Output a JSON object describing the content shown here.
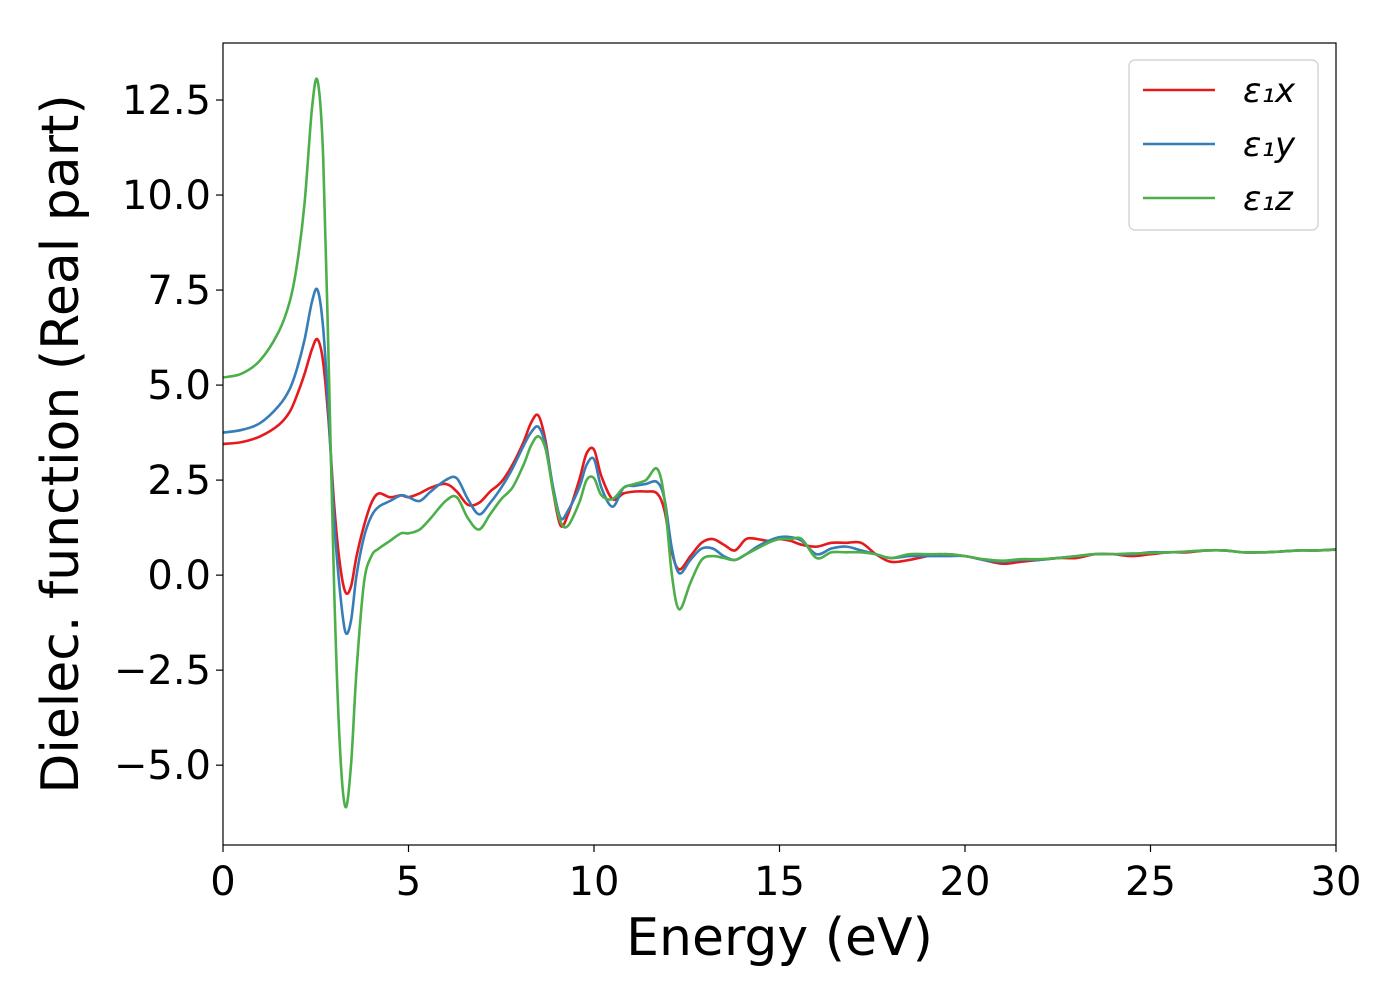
{
  "chart_data": {
    "type": "line",
    "title": "",
    "xlabel": "Energy (eV)",
    "ylabel": "Dielec. function (Real part)",
    "xlim": [
      0,
      30
    ],
    "ylim": [
      -7.1,
      14.0
    ],
    "xticks": [
      0,
      5,
      10,
      15,
      20,
      25,
      30
    ],
    "xtick_labels": [
      "0",
      "5",
      "10",
      "15",
      "20",
      "25",
      "30"
    ],
    "yticks": [
      -5.0,
      -2.5,
      0.0,
      2.5,
      5.0,
      7.5,
      10.0,
      12.5
    ],
    "ytick_labels": [
      "−5.0",
      "−2.5",
      "0.0",
      "2.5",
      "5.0",
      "7.5",
      "10.0",
      "12.5"
    ],
    "grid": false,
    "legend_position": "top-right",
    "series": [
      {
        "name": "ε₁x",
        "color": "#e41a1c",
        "x": [
          0,
          0.5,
          1.0,
          1.5,
          1.8,
          2.0,
          2.2,
          2.4,
          2.55,
          2.7,
          2.85,
          3.0,
          3.15,
          3.3,
          3.45,
          3.6,
          3.8,
          4.0,
          4.2,
          4.5,
          4.8,
          5.0,
          5.3,
          5.6,
          6.0,
          6.3,
          6.6,
          6.9,
          7.2,
          7.5,
          7.8,
          8.1,
          8.3,
          8.5,
          8.7,
          8.9,
          9.1,
          9.3,
          9.6,
          9.8,
          10.0,
          10.2,
          10.5,
          10.8,
          11.1,
          11.4,
          11.7,
          11.9,
          12.1,
          12.3,
          12.6,
          12.9,
          13.2,
          13.5,
          13.8,
          14.1,
          14.4,
          14.7,
          15.0,
          15.3,
          15.6,
          16.0,
          16.4,
          16.8,
          17.2,
          17.6,
          18.0,
          18.5,
          19.0,
          19.5,
          20.0,
          20.5,
          21.0,
          21.5,
          22.0,
          22.5,
          23.0,
          23.5,
          24.0,
          24.5,
          25.0,
          25.5,
          26.0,
          26.5,
          27.0,
          27.5,
          28.0,
          28.5,
          29.0,
          29.5,
          30.0
        ],
        "y": [
          3.45,
          3.5,
          3.65,
          3.95,
          4.3,
          4.75,
          5.3,
          5.95,
          6.2,
          5.6,
          4.0,
          1.8,
          0.3,
          -0.45,
          -0.3,
          0.5,
          1.3,
          1.9,
          2.15,
          2.05,
          2.1,
          2.05,
          2.15,
          2.3,
          2.4,
          2.2,
          1.85,
          1.9,
          2.2,
          2.45,
          2.9,
          3.5,
          4.0,
          4.2,
          3.5,
          2.2,
          1.3,
          1.6,
          2.5,
          3.2,
          3.3,
          2.6,
          2.0,
          2.15,
          2.2,
          2.2,
          2.15,
          1.7,
          0.6,
          0.15,
          0.5,
          0.85,
          0.95,
          0.8,
          0.65,
          0.95,
          0.95,
          0.9,
          0.95,
          0.9,
          0.8,
          0.75,
          0.85,
          0.85,
          0.85,
          0.55,
          0.35,
          0.4,
          0.5,
          0.55,
          0.5,
          0.4,
          0.3,
          0.35,
          0.4,
          0.45,
          0.45,
          0.55,
          0.55,
          0.5,
          0.55,
          0.6,
          0.6,
          0.65,
          0.65,
          0.6,
          0.6,
          0.62,
          0.65,
          0.65,
          0.67
        ]
      },
      {
        "name": "ε₁y",
        "color": "#377eb8",
        "x": [
          0,
          0.5,
          1.0,
          1.5,
          1.8,
          2.0,
          2.2,
          2.4,
          2.55,
          2.7,
          2.85,
          3.0,
          3.15,
          3.3,
          3.45,
          3.6,
          3.8,
          4.0,
          4.2,
          4.5,
          4.8,
          5.0,
          5.3,
          5.6,
          6.0,
          6.3,
          6.6,
          6.9,
          7.2,
          7.5,
          7.8,
          8.1,
          8.3,
          8.5,
          8.7,
          8.9,
          9.1,
          9.3,
          9.6,
          9.8,
          10.0,
          10.2,
          10.5,
          10.8,
          11.1,
          11.4,
          11.7,
          11.9,
          12.1,
          12.3,
          12.6,
          12.9,
          13.2,
          13.5,
          13.8,
          14.1,
          14.4,
          14.7,
          15.0,
          15.3,
          15.6,
          16.0,
          16.4,
          16.8,
          17.2,
          17.6,
          18.0,
          18.5,
          19.0,
          19.5,
          20.0,
          20.5,
          21.0,
          21.5,
          22.0,
          22.5,
          23.0,
          23.5,
          24.0,
          24.5,
          25.0,
          25.5,
          26.0,
          26.5,
          27.0,
          27.5,
          28.0,
          28.5,
          29.0,
          29.5,
          30.0
        ],
        "y": [
          3.75,
          3.82,
          4.0,
          4.45,
          4.9,
          5.45,
          6.2,
          7.2,
          7.5,
          6.5,
          4.2,
          1.4,
          -0.4,
          -1.5,
          -1.2,
          0.0,
          1.0,
          1.55,
          1.8,
          1.95,
          2.1,
          2.05,
          1.95,
          2.2,
          2.5,
          2.55,
          2.0,
          1.6,
          1.9,
          2.3,
          2.8,
          3.4,
          3.75,
          3.9,
          3.4,
          2.3,
          1.5,
          1.7,
          2.3,
          2.9,
          3.05,
          2.3,
          1.8,
          2.3,
          2.35,
          2.4,
          2.45,
          2.0,
          0.7,
          0.05,
          0.4,
          0.7,
          0.7,
          0.5,
          0.4,
          0.55,
          0.75,
          0.9,
          1.0,
          1.0,
          0.9,
          0.55,
          0.7,
          0.75,
          0.65,
          0.55,
          0.45,
          0.5,
          0.5,
          0.5,
          0.5,
          0.4,
          0.35,
          0.4,
          0.4,
          0.45,
          0.5,
          0.55,
          0.55,
          0.55,
          0.6,
          0.6,
          0.62,
          0.65,
          0.65,
          0.6,
          0.6,
          0.62,
          0.65,
          0.65,
          0.68
        ]
      },
      {
        "name": "ε₁z",
        "color": "#4daf4a",
        "x": [
          0,
          0.5,
          1.0,
          1.5,
          1.8,
          2.0,
          2.2,
          2.4,
          2.55,
          2.7,
          2.85,
          3.0,
          3.15,
          3.3,
          3.45,
          3.6,
          3.8,
          4.0,
          4.2,
          4.5,
          4.8,
          5.0,
          5.3,
          5.6,
          6.0,
          6.3,
          6.6,
          6.9,
          7.2,
          7.5,
          7.8,
          8.1,
          8.3,
          8.5,
          8.7,
          8.9,
          9.1,
          9.3,
          9.6,
          9.8,
          10.0,
          10.2,
          10.5,
          10.8,
          11.1,
          11.4,
          11.7,
          11.9,
          12.1,
          12.3,
          12.6,
          12.9,
          13.2,
          13.5,
          13.8,
          14.1,
          14.4,
          14.7,
          15.0,
          15.3,
          15.6,
          16.0,
          16.4,
          16.8,
          17.2,
          17.6,
          18.0,
          18.5,
          19.0,
          19.5,
          20.0,
          20.5,
          21.0,
          21.5,
          22.0,
          22.5,
          23.0,
          23.5,
          24.0,
          24.5,
          25.0,
          25.5,
          26.0,
          26.5,
          27.0,
          27.5,
          28.0,
          28.5,
          29.0,
          29.5,
          30.0
        ],
        "y": [
          5.2,
          5.3,
          5.65,
          6.4,
          7.2,
          8.2,
          9.8,
          12.3,
          13.0,
          11.0,
          5.5,
          -0.5,
          -4.5,
          -6.1,
          -5.0,
          -2.5,
          -0.2,
          0.5,
          0.7,
          0.9,
          1.1,
          1.1,
          1.2,
          1.5,
          1.95,
          2.05,
          1.5,
          1.2,
          1.6,
          2.0,
          2.3,
          2.9,
          3.4,
          3.65,
          3.3,
          2.2,
          1.4,
          1.3,
          1.9,
          2.5,
          2.55,
          2.1,
          2.0,
          2.3,
          2.4,
          2.5,
          2.8,
          2.0,
          0.0,
          -0.9,
          -0.2,
          0.4,
          0.5,
          0.45,
          0.4,
          0.55,
          0.7,
          0.85,
          0.95,
          0.95,
          0.95,
          0.45,
          0.6,
          0.6,
          0.6,
          0.55,
          0.45,
          0.55,
          0.55,
          0.55,
          0.5,
          0.42,
          0.38,
          0.42,
          0.42,
          0.45,
          0.5,
          0.55,
          0.55,
          0.57,
          0.58,
          0.6,
          0.62,
          0.65,
          0.65,
          0.6,
          0.6,
          0.62,
          0.65,
          0.65,
          0.68
        ]
      }
    ]
  }
}
